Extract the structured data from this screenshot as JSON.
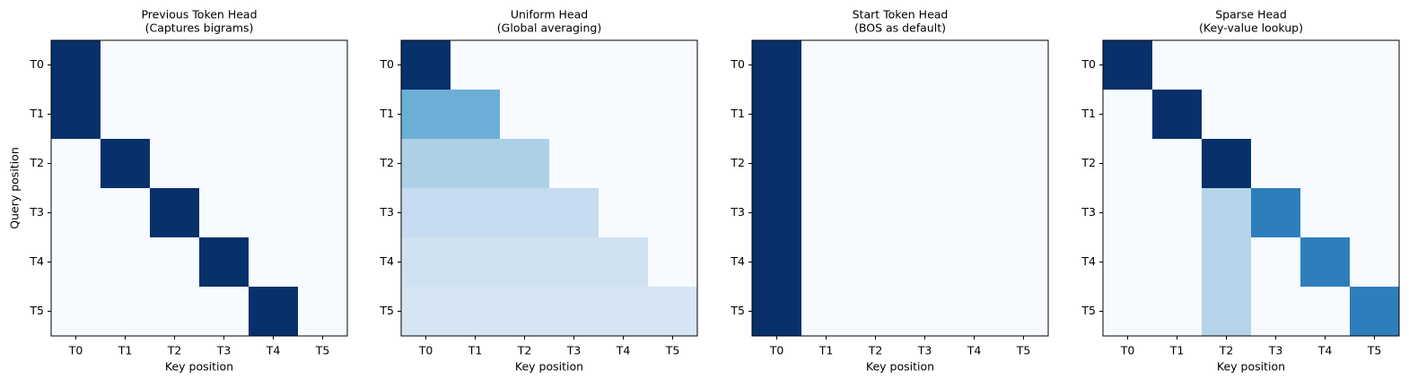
{
  "chart_data": [
    {
      "type": "heatmap",
      "title": "Previous Token Head",
      "subtitle": "(Captures bigrams)",
      "x_label": "Key position",
      "y_label": "Query position",
      "x_categories": [
        "T0",
        "T1",
        "T2",
        "T3",
        "T4",
        "T5"
      ],
      "y_categories": [
        "T0",
        "T1",
        "T2",
        "T3",
        "T4",
        "T5"
      ],
      "cmap": "Blues",
      "clim": [
        0,
        1
      ],
      "values": [
        [
          1,
          0,
          0,
          0,
          0,
          0
        ],
        [
          1,
          0,
          0,
          0,
          0,
          0
        ],
        [
          0,
          1,
          0,
          0,
          0,
          0
        ],
        [
          0,
          0,
          1,
          0,
          0,
          0
        ],
        [
          0,
          0,
          0,
          1,
          0,
          0
        ],
        [
          0,
          0,
          0,
          0,
          1,
          0
        ]
      ]
    },
    {
      "type": "heatmap",
      "title": "Uniform Head",
      "subtitle": "(Global averaging)",
      "x_label": "Key position",
      "x_categories": [
        "T0",
        "T1",
        "T2",
        "T3",
        "T4",
        "T5"
      ],
      "y_categories": [
        "T0",
        "T1",
        "T2",
        "T3",
        "T4",
        "T5"
      ],
      "cmap": "Blues",
      "clim": [
        0,
        1
      ],
      "values": [
        [
          1,
          0,
          0,
          0,
          0,
          0
        ],
        [
          0.5,
          0.5,
          0,
          0,
          0,
          0
        ],
        [
          0.33,
          0.33,
          0.33,
          0,
          0,
          0
        ],
        [
          0.25,
          0.25,
          0.25,
          0.25,
          0,
          0
        ],
        [
          0.2,
          0.2,
          0.2,
          0.2,
          0.2,
          0
        ],
        [
          0.17,
          0.17,
          0.17,
          0.17,
          0.17,
          0.17
        ]
      ]
    },
    {
      "type": "heatmap",
      "title": "Start Token Head",
      "subtitle": "(BOS as default)",
      "x_label": "Key position",
      "x_categories": [
        "T0",
        "T1",
        "T2",
        "T3",
        "T4",
        "T5"
      ],
      "y_categories": [
        "T0",
        "T1",
        "T2",
        "T3",
        "T4",
        "T5"
      ],
      "cmap": "Blues",
      "clim": [
        0,
        1
      ],
      "values": [
        [
          1,
          0,
          0,
          0,
          0,
          0
        ],
        [
          1,
          0,
          0,
          0,
          0,
          0
        ],
        [
          1,
          0,
          0,
          0,
          0,
          0
        ],
        [
          1,
          0,
          0,
          0,
          0,
          0
        ],
        [
          1,
          0,
          0,
          0,
          0,
          0
        ],
        [
          1,
          0,
          0,
          0,
          0,
          0
        ]
      ]
    },
    {
      "type": "heatmap",
      "title": "Sparse Head",
      "subtitle": "(Key-value lookup)",
      "x_label": "Key position",
      "x_categories": [
        "T0",
        "T1",
        "T2",
        "T3",
        "T4",
        "T5"
      ],
      "y_categories": [
        "T0",
        "T1",
        "T2",
        "T3",
        "T4",
        "T5"
      ],
      "cmap": "Blues",
      "clim": [
        0,
        1
      ],
      "values": [
        [
          1,
          0,
          0,
          0,
          0,
          0
        ],
        [
          0,
          1,
          0,
          0,
          0,
          0
        ],
        [
          0,
          0,
          1,
          0,
          0,
          0
        ],
        [
          0,
          0,
          0.3,
          0.7,
          0,
          0
        ],
        [
          0,
          0,
          0.3,
          0,
          0.7,
          0
        ],
        [
          0,
          0,
          0.3,
          0,
          0,
          0.7
        ]
      ]
    }
  ]
}
